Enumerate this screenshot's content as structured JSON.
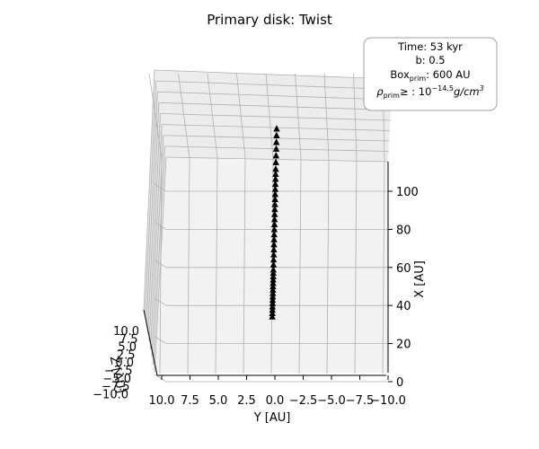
{
  "chart_data": {
    "type": "scatter",
    "title": "Primary disk: Twist",
    "info_box": {
      "line1": "Time: 53 kyr",
      "line2": "b: 0.5",
      "line3_main": "Box",
      "line3_sub": "prim",
      "line3_rest": ": 600 AU",
      "line4_rho": "ρ",
      "line4_sub": "prim",
      "line4_mid": "≥ : 10",
      "line4_sup": "−14.5",
      "line4_unit": "g/cm",
      "line4_unit_sup": "3"
    },
    "axes": {
      "x": {
        "label": "X [AU]",
        "ticks": [
          "0",
          "20",
          "40",
          "60",
          "80",
          "100"
        ],
        "range": [
          0,
          115
        ]
      },
      "y": {
        "label": "Y [AU]",
        "ticks": [
          "10.0",
          "7.5",
          "5.0",
          "2.5",
          "0.0",
          "−2.5",
          "−5.0",
          "−7.5",
          "−10.0"
        ],
        "range": [
          10,
          -10
        ]
      },
      "z": {
        "label": "Z [AU]",
        "ticks": [
          "10.0",
          "7.5",
          "5.0",
          "2.5",
          "0.0",
          "−2.5",
          "−5.0",
          "−7.5",
          "−10.0"
        ],
        "range": [
          -10,
          10
        ]
      }
    },
    "series": [
      {
        "marker": "^",
        "color": "#000000",
        "points": [
          {
            "x": 2,
            "y": 0.15
          },
          {
            "x": 4,
            "y": 0.14
          },
          {
            "x": 6,
            "y": 0.13
          },
          {
            "x": 8,
            "y": 0.12
          },
          {
            "x": 10,
            "y": 0.11
          },
          {
            "x": 12,
            "y": 0.1
          },
          {
            "x": 14,
            "y": 0.09
          },
          {
            "x": 16,
            "y": 0.08
          },
          {
            "x": 18,
            "y": 0.07
          },
          {
            "x": 20,
            "y": 0.06
          },
          {
            "x": 22,
            "y": 0.05
          },
          {
            "x": 24,
            "y": 0.04
          },
          {
            "x": 26,
            "y": 0.03
          },
          {
            "x": 28,
            "y": 0.02
          },
          {
            "x": 30,
            "y": 0.01
          },
          {
            "x": 33,
            "y": 0.0
          },
          {
            "x": 36,
            "y": -0.02
          },
          {
            "x": 39,
            "y": -0.04
          },
          {
            "x": 42,
            "y": -0.06
          },
          {
            "x": 45,
            "y": -0.08
          },
          {
            "x": 48,
            "y": -0.1
          },
          {
            "x": 51,
            "y": -0.12
          },
          {
            "x": 54,
            "y": -0.14
          },
          {
            "x": 57,
            "y": -0.16
          },
          {
            "x": 60,
            "y": -0.18
          },
          {
            "x": 63,
            "y": -0.2
          },
          {
            "x": 66,
            "y": -0.22
          },
          {
            "x": 69,
            "y": -0.24
          },
          {
            "x": 72,
            "y": -0.26
          },
          {
            "x": 75,
            "y": -0.28
          },
          {
            "x": 78,
            "y": -0.3
          },
          {
            "x": 81,
            "y": -0.32
          },
          {
            "x": 84,
            "y": -0.34
          },
          {
            "x": 87,
            "y": -0.36
          },
          {
            "x": 90,
            "y": -0.38
          },
          {
            "x": 94,
            "y": -0.4
          },
          {
            "x": 98,
            "y": -0.42
          },
          {
            "x": 102,
            "y": -0.44
          },
          {
            "x": 106,
            "y": -0.46
          },
          {
            "x": 110,
            "y": -0.48
          },
          {
            "x": 114,
            "y": -0.5
          }
        ]
      }
    ],
    "grid": true
  }
}
